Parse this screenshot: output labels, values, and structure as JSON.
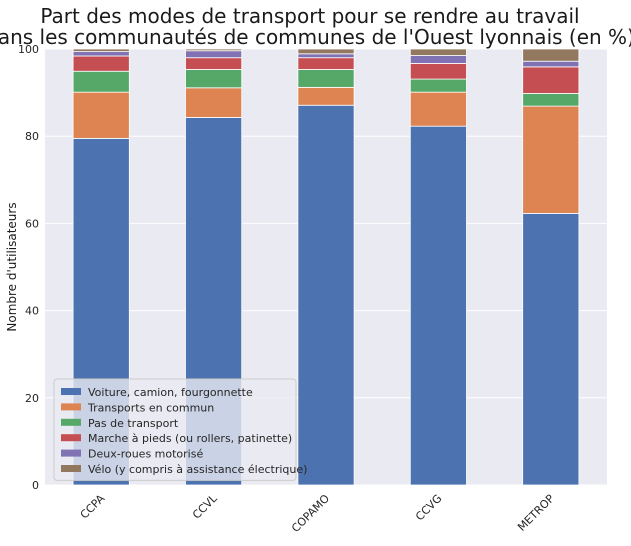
{
  "chart_data": {
    "type": "bar",
    "stacked": true,
    "title_lines": [
      "Part des modes de transport pour se rendre au travail",
      "dans les communautés de communes de l'Ouest lyonnais (en %)"
    ],
    "xlabel": "",
    "ylabel": "Nombre d'utilisateurs",
    "ylim": [
      0,
      100
    ],
    "yticks": [
      0,
      20,
      40,
      60,
      80,
      100
    ],
    "grid": true,
    "legend_position": "lower-left",
    "categories": [
      "CCPA",
      "CCVL",
      "COPAMO",
      "CCVG",
      "METROP"
    ],
    "series": [
      {
        "name": "Voiture, camion, fourgonnette",
        "color": "#4c72b0",
        "values": [
          79.5,
          84.3,
          87.1,
          82.3,
          62.3
        ]
      },
      {
        "name": "Transports en commun",
        "color": "#dd8452",
        "values": [
          10.6,
          6.8,
          4.1,
          7.8,
          24.6
        ]
      },
      {
        "name": "Pas de transport",
        "color": "#55a868",
        "values": [
          4.8,
          4.2,
          4.1,
          3.0,
          2.9
        ]
      },
      {
        "name": "Marche à pieds (ou rollers, patinette)",
        "color": "#c44e52",
        "values": [
          3.5,
          2.7,
          2.7,
          3.6,
          6.1
        ]
      },
      {
        "name": "Deux-roues motorisé",
        "color": "#8172b3",
        "values": [
          1.0,
          1.6,
          0.9,
          1.8,
          1.3
        ]
      },
      {
        "name": "Vélo (y compris à assistance électrique)",
        "color": "#937860",
        "values": [
          0.6,
          0.4,
          1.1,
          1.5,
          2.8
        ]
      }
    ]
  }
}
